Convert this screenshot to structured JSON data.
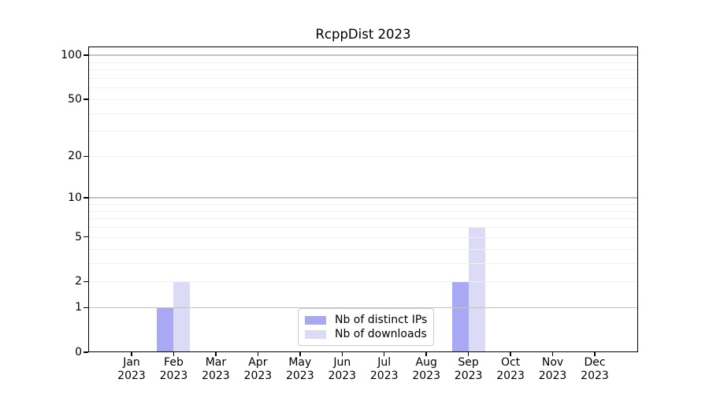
{
  "chart_data": {
    "type": "bar",
    "title": "RcppDist 2023",
    "categories": [
      "Jan",
      "Feb",
      "Mar",
      "Apr",
      "May",
      "Jun",
      "Jul",
      "Aug",
      "Sep",
      "Oct",
      "Nov",
      "Dec"
    ],
    "x_tick_year": "2023",
    "series": [
      {
        "name": "Nb of distinct IPs",
        "color": "#a8a8f5",
        "values": [
          0,
          1,
          0,
          0,
          0,
          0,
          0,
          0,
          2,
          0,
          0,
          0
        ]
      },
      {
        "name": "Nb of downloads",
        "color": "#dbdbf7",
        "values": [
          0,
          2,
          0,
          0,
          0,
          0,
          0,
          0,
          6,
          0,
          0,
          0
        ]
      }
    ],
    "y_axis": {
      "scale": "log1p",
      "max": 100,
      "tick_values": [
        0,
        1,
        2,
        5,
        10,
        20,
        50,
        100
      ],
      "major_grid_values": [
        1,
        10,
        100
      ],
      "minor_grid_values": [
        2,
        3,
        4,
        5,
        6,
        7,
        8,
        9,
        20,
        30,
        40,
        50,
        60,
        70,
        80,
        90
      ]
    },
    "legend": {
      "position": "bottom-center",
      "entries": [
        "Nb of distinct IPs",
        "Nb of downloads"
      ]
    },
    "grid": true,
    "xlabel": "",
    "ylabel": ""
  },
  "colors": {
    "background": "#ffffff",
    "spine": "#000000",
    "major_grid": "#c2c2c2",
    "minor_grid": "#f0f0f0",
    "bar_distinct_ips": "#a8a8f5",
    "bar_downloads": "#dbdbf7",
    "legend_border": "#c9c9c9",
    "text": "#000000"
  }
}
